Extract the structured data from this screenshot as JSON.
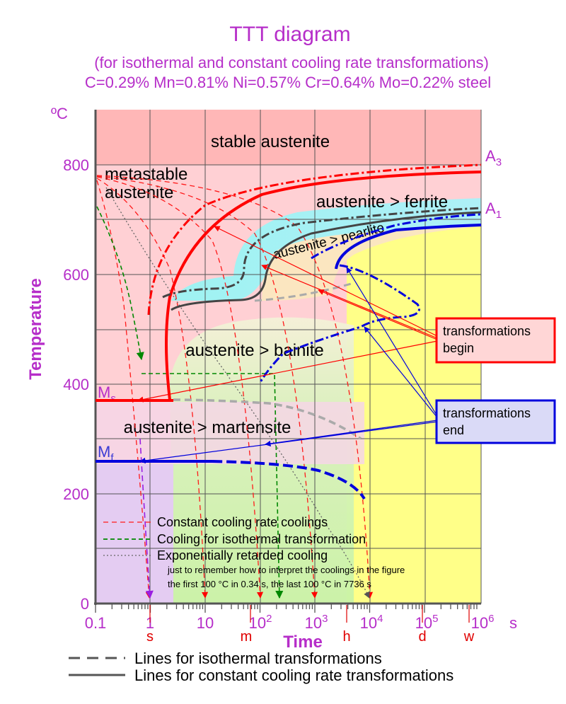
{
  "title": "TTT diagram",
  "subtitle_1": "(for isothermal and constant cooling rate transformations)",
  "subtitle_2": "C=0.29% Mn=0.81% Ni=0.57% Cr=0.64% Mo=0.22% steel",
  "y_unit": "ºC",
  "y_label": "Temperature",
  "x_label": "Time",
  "x_unit": "s",
  "y_ticks": [
    "800",
    "600",
    "400",
    "200",
    "0"
  ],
  "x_ticks": {
    "t1": "0.1",
    "t2": "1",
    "t3": "10",
    "t4_base": "10",
    "t4_exp": "2",
    "t5_base": "10",
    "t5_exp": "3",
    "t6_base": "10",
    "t6_exp": "4",
    "t7_base": "10",
    "t7_exp": "5",
    "t8_base": "10",
    "t8_exp": "6"
  },
  "lines": {
    "A3_base": "A",
    "A3_sub": "3",
    "A1_base": "A",
    "A1_sub": "1",
    "Ms_base": "M",
    "Ms_sub": "s",
    "Mf_base": "M",
    "Mf_sub": "f"
  },
  "regions": {
    "stable": "stable austenite",
    "metastable_1": "metastable",
    "metastable_2": "austenite",
    "ferrite": "austenite > ferrite",
    "pearlite": "austenite > pearlite",
    "bainite": "austenite > bainite",
    "martensite": "austenite > martensite"
  },
  "callouts": {
    "begin_1": "transformations",
    "begin_2": "begin",
    "end_1": "transformations",
    "end_2": "end"
  },
  "legend": {
    "constant": "Constant cooling rate coolings",
    "isothermal": "Cooling for isothermal transformation",
    "exponential": "Exponentially retarded cooling",
    "note_1": "just to remember how to interpret the coolings in the figure",
    "note_2": "the first 100 °C in 0.34 s, the last 100 °C in 7736 s"
  },
  "bottom_legend": {
    "dashed": "Lines for isothermal transformations",
    "solid": "Lines for constant cooling rate transformations"
  },
  "cooling_markers": [
    "s",
    "m",
    "h",
    "d",
    "w"
  ],
  "colors": {
    "accent": "#b62ec9",
    "begin_line": "#ff0000",
    "end_line": "#0000dd",
    "ferrite_line": "#444444",
    "isothermal_line": "#008800"
  }
}
